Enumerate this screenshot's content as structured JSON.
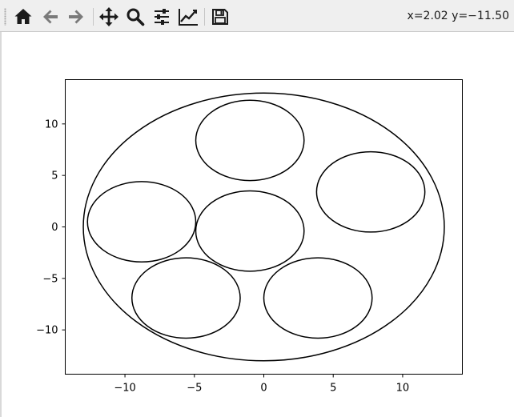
{
  "toolbar": {
    "buttons": [
      {
        "name": "home-button",
        "icon": "home-icon"
      },
      {
        "name": "back-button",
        "icon": "arrow-left-icon"
      },
      {
        "name": "forward-button",
        "icon": "arrow-right-icon"
      },
      {
        "name": "pan-button",
        "icon": "move-icon"
      },
      {
        "name": "zoom-button",
        "icon": "magnifier-icon"
      },
      {
        "name": "configure-subplots-button",
        "icon": "sliders-icon"
      },
      {
        "name": "edit-axis-button",
        "icon": "line-chart-icon"
      },
      {
        "name": "save-button",
        "icon": "floppy-disk-icon"
      }
    ],
    "coords_text": "x=2.02 y=−11.50"
  },
  "chart_data": {
    "type": "line",
    "title": "",
    "xlabel": "",
    "ylabel": "",
    "xlim": [
      -14.3,
      14.3
    ],
    "ylim": [
      -14.3,
      14.3
    ],
    "xticks": [
      -10,
      -5,
      0,
      5,
      10
    ],
    "yticks": [
      -10,
      -5,
      0,
      5,
      10
    ],
    "xtick_labels": [
      "−10",
      "−5",
      "0",
      "5",
      "10"
    ],
    "ytick_labels": [
      "−10",
      "−5",
      "0",
      "5",
      "10"
    ],
    "grid": false,
    "line_color": "#000000",
    "series": [
      {
        "shape": "circle",
        "center": [
          0,
          0
        ],
        "radius": 13
      },
      {
        "shape": "circle",
        "center": [
          -1,
          8.4
        ],
        "radius": 3.9
      },
      {
        "shape": "circle",
        "center": [
          7.7,
          3.4
        ],
        "radius": 3.9
      },
      {
        "shape": "circle",
        "center": [
          -8.8,
          0.5
        ],
        "radius": 3.9
      },
      {
        "shape": "circle",
        "center": [
          -1,
          -0.4
        ],
        "radius": 3.9
      },
      {
        "shape": "circle",
        "center": [
          -5.6,
          -6.9
        ],
        "radius": 3.9
      },
      {
        "shape": "circle",
        "center": [
          3.9,
          -6.9
        ],
        "radius": 3.9
      }
    ]
  }
}
